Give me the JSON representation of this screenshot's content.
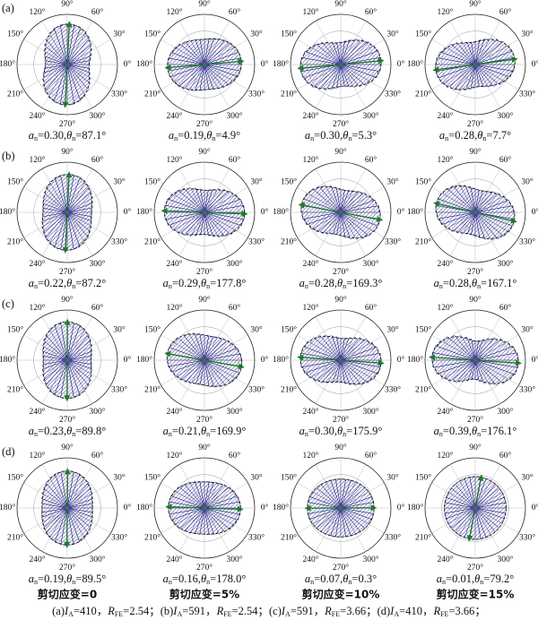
{
  "figure": {
    "row_labels": [
      "(a)",
      "(b)",
      "(c)",
      "(d)"
    ],
    "column_labels": [
      "剪切应变=0",
      "剪切应变=5%",
      "剪切应变=10%",
      "剪切应变=15%"
    ],
    "angle_ticks": [
      {
        "value": 0,
        "label": "0°"
      },
      {
        "value": 30,
        "label": "30°"
      },
      {
        "value": 60,
        "label": "60°"
      },
      {
        "value": 90,
        "label": "90°"
      },
      {
        "value": 120,
        "label": "120°"
      },
      {
        "value": 150,
        "label": "150°"
      },
      {
        "value": 180,
        "label": "180°"
      },
      {
        "value": 210,
        "label": "210°"
      },
      {
        "value": 240,
        "label": "240°"
      },
      {
        "value": 270,
        "label": "270°"
      },
      {
        "value": 300,
        "label": "300°"
      },
      {
        "value": 330,
        "label": "330°"
      }
    ],
    "param_names": [
      {
        "symbol": "a",
        "subscript": "n",
        "sign": "="
      },
      {
        "symbol": "θ",
        "subscript": "n",
        "sign": "="
      }
    ],
    "separator": ",",
    "conditions": [
      {
        "label": "(a)",
        "values": [
          410,
          2.54
        ]
      },
      {
        "label": "(b)",
        "values": [
          591,
          2.54
        ]
      },
      {
        "label": "(c)",
        "values": [
          591,
          3.66
        ]
      },
      {
        "label": "(d)",
        "values": [
          410,
          3.66
        ]
      }
    ],
    "condition_names": [
      {
        "symbol": "I",
        "subscript": "A",
        "sign": "="
      },
      {
        "symbol": "R",
        "subscript": "FE",
        "sign": "="
      }
    ],
    "condition_separator": "，",
    "condition_end": "；",
    "bar_color": "#1c1c86",
    "arrow_color": "#1f7a2a"
  },
  "chart_data": [
    {
      "type": "rose",
      "values": [
        0.3,
        87.1
      ],
      "value_labels": [
        "0.30",
        "87.1°"
      ]
    },
    {
      "type": "rose",
      "values": [
        0.19,
        4.9
      ],
      "value_labels": [
        "0.19",
        "4.9°"
      ]
    },
    {
      "type": "rose",
      "values": [
        0.3,
        5.3
      ],
      "value_labels": [
        "0.30",
        "5.3°"
      ]
    },
    {
      "type": "rose",
      "values": [
        0.28,
        7.7
      ],
      "value_labels": [
        "0.28",
        "7.7°"
      ]
    },
    {
      "type": "rose",
      "values": [
        0.22,
        87.2
      ],
      "value_labels": [
        "0.22",
        "87.2°"
      ]
    },
    {
      "type": "rose",
      "values": [
        0.29,
        177.8
      ],
      "value_labels": [
        "0.29",
        "177.8°"
      ]
    },
    {
      "type": "rose",
      "values": [
        0.28,
        169.3
      ],
      "value_labels": [
        "0.28",
        "169.3°"
      ]
    },
    {
      "type": "rose",
      "values": [
        0.28,
        167.1
      ],
      "value_labels": [
        "0.28",
        "167.1°"
      ]
    },
    {
      "type": "rose",
      "values": [
        0.23,
        89.8
      ],
      "value_labels": [
        "0.23",
        "89.8°"
      ]
    },
    {
      "type": "rose",
      "values": [
        0.21,
        169.9
      ],
      "value_labels": [
        "0.21",
        "169.9°"
      ]
    },
    {
      "type": "rose",
      "values": [
        0.3,
        175.9
      ],
      "value_labels": [
        "0.30",
        "175.9°"
      ]
    },
    {
      "type": "rose",
      "values": [
        0.39,
        176.1
      ],
      "value_labels": [
        "0.39",
        "176.1°"
      ]
    },
    {
      "type": "rose",
      "values": [
        0.19,
        89.5
      ],
      "value_labels": [
        "0.19",
        "89.5°"
      ]
    },
    {
      "type": "rose",
      "values": [
        0.16,
        178.0
      ],
      "value_labels": [
        "0.16",
        "178.0°"
      ]
    },
    {
      "type": "rose",
      "values": [
        0.07,
        0.3
      ],
      "value_labels": [
        "0.07",
        "0.3°"
      ]
    },
    {
      "type": "rose",
      "values": [
        0.01,
        79.2
      ],
      "value_labels": [
        "0.01",
        "79.2°"
      ]
    }
  ]
}
